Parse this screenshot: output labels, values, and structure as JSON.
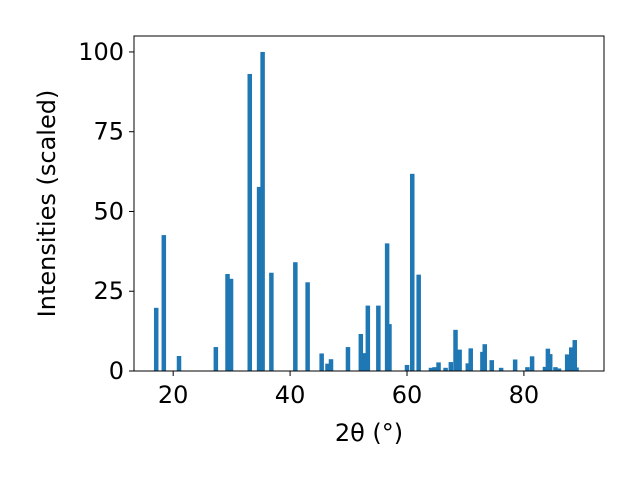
{
  "chart_data": {
    "type": "bar",
    "title": "",
    "xlabel": "2θ (°)",
    "ylabel": "Intensities (scaled)",
    "xlim": [
      13.3,
      93.7
    ],
    "ylim": [
      0,
      105
    ],
    "xticks": [
      20,
      40,
      60,
      80
    ],
    "yticks": [
      0,
      25,
      50,
      75,
      100
    ],
    "grid": false,
    "bar_color": "#1f77b4",
    "x": [
      17.1,
      18.4,
      21.0,
      27.3,
      29.3,
      29.9,
      33.1,
      34.7,
      35.3,
      36.8,
      40.9,
      43.0,
      45.4,
      46.4,
      47.0,
      49.9,
      52.1,
      52.8,
      53.3,
      55.1,
      56.6,
      57.0,
      60.0,
      60.9,
      62.0,
      64.1,
      64.7,
      65.4,
      66.6,
      67.5,
      68.3,
      69.0,
      70.4,
      70.9,
      72.9,
      73.3,
      74.5,
      76.1,
      78.5,
      80.6,
      81.4,
      83.6,
      84.1,
      84.5,
      85.4,
      86.0,
      87.4,
      88.1,
      88.7,
      89.0
    ],
    "values": [
      19.8,
      42.6,
      4.7,
      7.5,
      30.4,
      28.9,
      93.1,
      57.7,
      100,
      30.8,
      34.1,
      27.8,
      5.5,
      2.3,
      3.7,
      7.5,
      11.6,
      5.6,
      20.5,
      20.5,
      40.0,
      14.7,
      1.9,
      61.8,
      30.2,
      1.0,
      1.2,
      2.7,
      1.0,
      2.8,
      12.9,
      6.7,
      2.4,
      7.1,
      6.0,
      8.4,
      3.4,
      1.0,
      3.6,
      1.2,
      4.6,
      1.3,
      7.0,
      5.3,
      1.2,
      0.8,
      5.2,
      7.4,
      9.7,
      1.1
    ]
  }
}
